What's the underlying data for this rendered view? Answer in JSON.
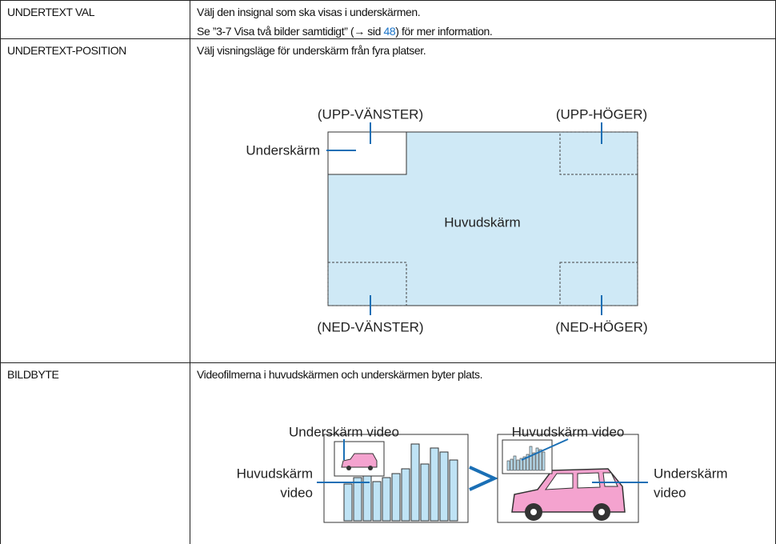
{
  "table": {
    "rows": [
      {
        "label": "UNDERTEXT VAL",
        "lines": [
          "Välj den insignal som ska visas i underskärmen."
        ],
        "reference": {
          "before": "Se ”3-7 Visa två bilder samtidigt” (→ sid ",
          "link": "48",
          "after": ") för mer information."
        }
      },
      {
        "label": "UNDERTEXT-POSITION",
        "lines": [
          "Välj visningsläge för underskärm från fyra platser."
        ],
        "diagram": {
          "upper_left": "(UPP-VÄNSTER)",
          "upper_right": "(UPP-HÖGER)",
          "sub": "Underskärm",
          "main": "Huvudskärm",
          "lower_left": "(NED-VÄNSTER)",
          "lower_right": "(NED-HÖGER)"
        }
      },
      {
        "label": "BILDBYTE",
        "lines": [
          "Videofilmerna i huvudskärmen och underskärmen byter plats."
        ],
        "diagram": {
          "left_sub": "Underskärm video",
          "right_sub": "Huvudskärm video",
          "left_main": [
            "Huvudskärm",
            "video"
          ],
          "right_main": [
            "Underskärm",
            "video"
          ]
        }
      }
    ]
  }
}
